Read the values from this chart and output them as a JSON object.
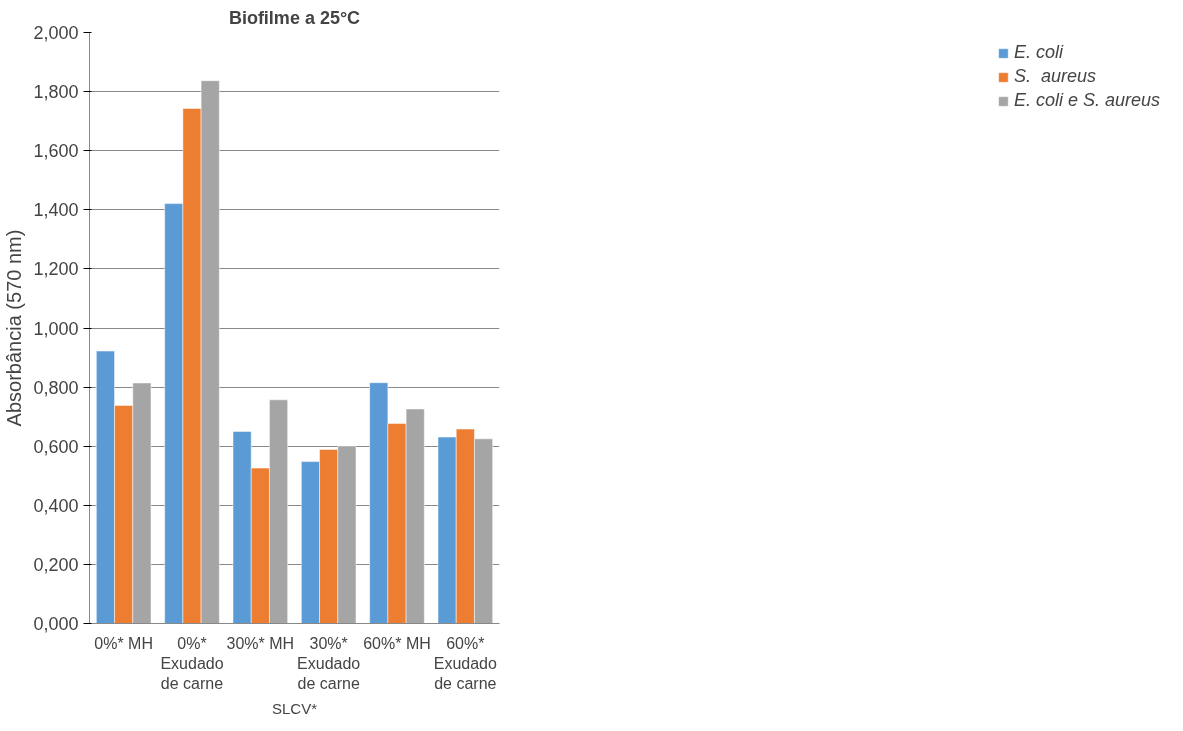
{
  "chart_data": {
    "type": "bar",
    "title": "Biofilme a 25°C",
    "ylabel": "Absorbância (570 nm)",
    "xlabel": "SLCV*",
    "categories": [
      "0%* MH",
      "0%*\nExudado\nde carne",
      "30%* MH",
      "30%*\nExudado\nde carne",
      "60%* MH",
      "60%*\nExudado\nde carne"
    ],
    "series": [
      {
        "name": "E. coli",
        "color": "#5b9bd5",
        "values": [
          0.922,
          1.421,
          0.65,
          0.548,
          0.815,
          0.631
        ]
      },
      {
        "name": "S.  aureus",
        "color": "#ed7d31",
        "values": [
          0.738,
          1.743,
          0.526,
          0.589,
          0.677,
          0.658
        ]
      },
      {
        "name": "E. coli e S. aureus",
        "color": "#a5a5a5",
        "values": [
          0.814,
          1.837,
          0.757,
          0.601,
          0.726,
          0.625
        ]
      }
    ],
    "ylim": [
      0,
      2
    ],
    "yticks": [
      {
        "value": 0,
        "label": "0,000"
      },
      {
        "value": 0.2,
        "label": "0,200"
      },
      {
        "value": 0.4,
        "label": "0,400"
      },
      {
        "value": 0.6,
        "label": "0,600"
      },
      {
        "value": 0.8,
        "label": "0,800"
      },
      {
        "value": 1.0,
        "label": "1,000"
      },
      {
        "value": 1.2,
        "label": "1,200"
      },
      {
        "value": 1.4,
        "label": "1,400"
      },
      {
        "value": 1.6,
        "label": "1,600"
      },
      {
        "value": 1.8,
        "label": "1,800"
      },
      {
        "value": 2.0,
        "label": "2,000"
      }
    ],
    "grid": "y",
    "legend": "right"
  }
}
